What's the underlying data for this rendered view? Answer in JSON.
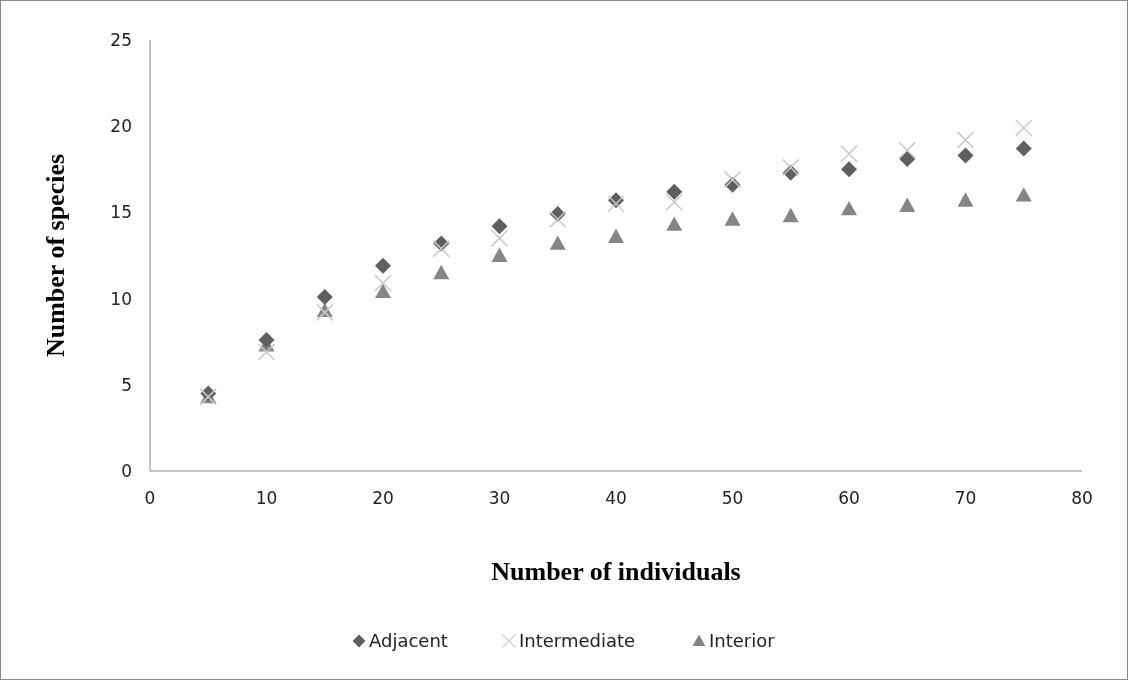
{
  "chart_data": {
    "type": "scatter",
    "xlabel": "Number of individuals",
    "ylabel": "Number of species",
    "x": [
      5,
      10,
      15,
      20,
      25,
      30,
      35,
      40,
      45,
      50,
      55,
      60,
      65,
      70,
      75
    ],
    "series": [
      {
        "name": "Adjacent",
        "color": "#5f5f5f",
        "marker": "diamond",
        "values": [
          4.5,
          7.6,
          10.1,
          11.9,
          13.2,
          14.2,
          14.9,
          15.7,
          16.2,
          16.6,
          17.3,
          17.5,
          18.1,
          18.3,
          18.7
        ]
      },
      {
        "name": "Intermediate",
        "color": "#c8c8c8",
        "marker": "cross",
        "values": [
          4.3,
          6.9,
          9.2,
          10.9,
          12.9,
          13.5,
          14.6,
          15.5,
          15.6,
          16.9,
          17.6,
          18.4,
          18.6,
          19.2,
          19.9
        ]
      },
      {
        "name": "Interior",
        "color": "#858585",
        "marker": "triangle",
        "values": [
          4.3,
          7.3,
          9.3,
          10.4,
          11.5,
          12.5,
          13.2,
          13.6,
          14.3,
          14.6,
          14.8,
          15.2,
          15.4,
          15.7,
          16.0
        ]
      }
    ],
    "xlim": [
      0,
      80
    ],
    "xticks": [
      0,
      10,
      20,
      30,
      40,
      50,
      60,
      70,
      80
    ],
    "ylim": [
      0,
      25
    ],
    "yticks": [
      0,
      5,
      10,
      15,
      20,
      25
    ],
    "grid": false,
    "legend": "bottom"
  }
}
